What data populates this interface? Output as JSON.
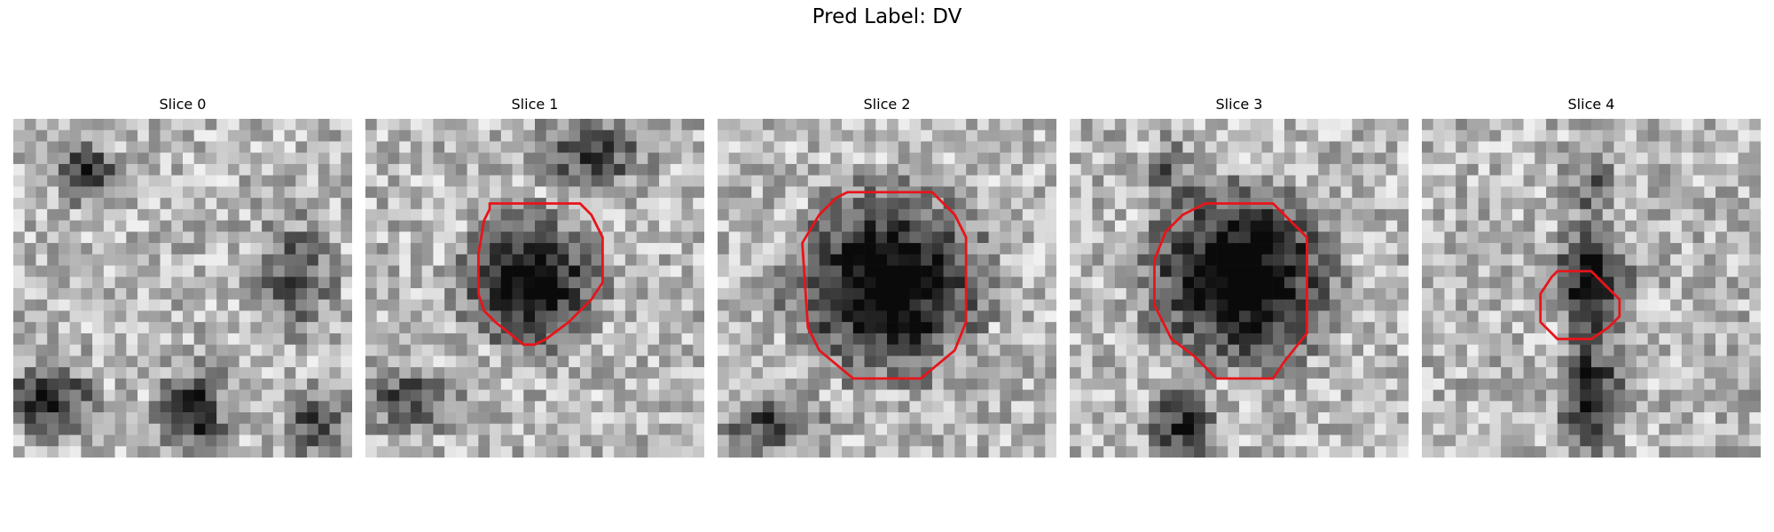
{
  "figure": {
    "title": "Pred Label: DV"
  },
  "panels": [
    {
      "title": "Slice 0",
      "blob": null,
      "contour": null
    },
    {
      "title": "Slice 1",
      "blob": "medium-dark",
      "contour": "red-octagon"
    },
    {
      "title": "Slice 2",
      "blob": "large-dark",
      "contour": "red-octagon"
    },
    {
      "title": "Slice 3",
      "blob": "large-dark",
      "contour": "red-octagon"
    },
    {
      "title": "Slice 4",
      "blob": "small-dark",
      "contour": "red-octagon"
    }
  ],
  "colors": {
    "contour": "#e8141a",
    "dark": "#1a1a1a",
    "light": "#e6e6e6"
  }
}
